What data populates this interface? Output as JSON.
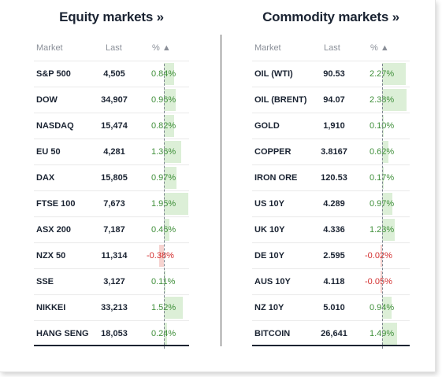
{
  "equity": {
    "title": "Equity markets »",
    "headers": {
      "market": "Market",
      "last": "Last",
      "pct": "% ▲"
    },
    "rows": [
      {
        "market": "S&P 500",
        "last": "4,505",
        "pct": "0.84%",
        "value": 0.84
      },
      {
        "market": "DOW",
        "last": "34,907",
        "pct": "0.96%",
        "value": 0.96
      },
      {
        "market": "NASDAQ",
        "last": "15,474",
        "pct": "0.82%",
        "value": 0.82
      },
      {
        "market": "EU 50",
        "last": "4,281",
        "pct": "1.36%",
        "value": 1.36
      },
      {
        "market": "DAX",
        "last": "15,805",
        "pct": "0.97%",
        "value": 0.97
      },
      {
        "market": "FTSE 100",
        "last": "7,673",
        "pct": "1.95%",
        "value": 1.95
      },
      {
        "market": "ASX 200",
        "last": "7,187",
        "pct": "0.46%",
        "value": 0.46
      },
      {
        "market": "NZX 50",
        "last": "11,314",
        "pct": "-0.38%",
        "value": -0.38
      },
      {
        "market": "SSE",
        "last": "3,127",
        "pct": "0.11%",
        "value": 0.11
      },
      {
        "market": "NIKKEI",
        "last": "33,213",
        "pct": "1.52%",
        "value": 1.52
      },
      {
        "market": "HANG SENG",
        "last": "18,053",
        "pct": "0.24%",
        "value": 0.24
      }
    ]
  },
  "commodity": {
    "title": "Commodity markets »",
    "headers": {
      "market": "Market",
      "last": "Last",
      "pct": "% ▲"
    },
    "rows": [
      {
        "market": "OIL (WTI)",
        "last": "90.53",
        "pct": "2.27%",
        "value": 2.27
      },
      {
        "market": "OIL (BRENT)",
        "last": "94.07",
        "pct": "2.38%",
        "value": 2.38
      },
      {
        "market": "GOLD",
        "last": "1,910",
        "pct": "0.10%",
        "value": 0.1
      },
      {
        "market": "COPPER",
        "last": "3.8167",
        "pct": "0.62%",
        "value": 0.62
      },
      {
        "market": "IRON ORE",
        "last": "120.53",
        "pct": "0.17%",
        "value": 0.17
      },
      {
        "market": "US 10Y",
        "last": "4.289",
        "pct": "0.97%",
        "value": 0.97
      },
      {
        "market": "UK 10Y",
        "last": "4.336",
        "pct": "1.23%",
        "value": 1.23
      },
      {
        "market": "DE 10Y",
        "last": "2.595",
        "pct": "-0.02%",
        "value": -0.02
      },
      {
        "market": "AUS 10Y",
        "last": "4.118",
        "pct": "-0.05%",
        "value": -0.05
      },
      {
        "market": "NZ 10Y",
        "last": "5.010",
        "pct": "0.94%",
        "value": 0.94
      },
      {
        "market": "BITCOIN",
        "last": "26,641",
        "pct": "1.49%",
        "value": 1.49
      }
    ]
  },
  "colors": {
    "positive": "#3f8f3a",
    "negative": "#d32f2f",
    "positive_bar": "#dcefd7",
    "negative_bar": "#f6d3d0"
  }
}
